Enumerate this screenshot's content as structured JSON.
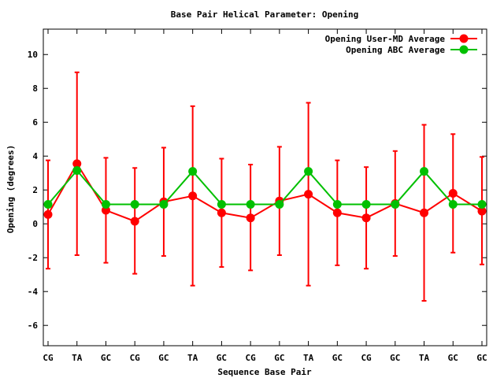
{
  "chart_data": {
    "type": "line",
    "title": "Base Pair Helical Parameter: Opening",
    "xlabel": "Sequence Base Pair",
    "ylabel": "Opening (degrees)",
    "categories": [
      "CG",
      "TA",
      "GC",
      "CG",
      "GC",
      "TA",
      "GC",
      "CG",
      "GC",
      "TA",
      "GC",
      "CG",
      "GC",
      "TA",
      "GC",
      "GC"
    ],
    "ylim": [
      -7.2,
      11.5
    ],
    "yticks": [
      -6,
      -4,
      -2,
      0,
      2,
      4,
      6,
      8,
      10
    ],
    "legend_position": "top-right",
    "grid": false,
    "series": [
      {
        "name": "Opening User-MD Average",
        "color": "#ff0000",
        "values": [
          0.55,
          3.55,
          0.8,
          0.15,
          1.3,
          1.65,
          0.65,
          0.35,
          1.35,
          1.75,
          0.65,
          0.35,
          1.2,
          0.65,
          1.8,
          0.75
        ],
        "err_low": [
          -2.65,
          -1.85,
          -2.3,
          -2.95,
          -1.9,
          -3.65,
          -2.55,
          -2.75,
          -1.85,
          -3.65,
          -2.45,
          -2.65,
          -1.9,
          -4.55,
          -1.7,
          -2.4
        ],
        "err_high": [
          3.75,
          8.95,
          3.9,
          3.3,
          4.5,
          6.95,
          3.85,
          3.5,
          4.55,
          7.15,
          3.75,
          3.35,
          4.3,
          5.85,
          5.3,
          3.95
        ]
      },
      {
        "name": "Opening ABC Average",
        "color": "#00c000",
        "values": [
          1.15,
          3.15,
          1.15,
          1.15,
          1.15,
          3.1,
          1.15,
          1.15,
          1.15,
          3.1,
          1.15,
          1.15,
          1.15,
          3.1,
          1.15,
          1.15
        ]
      }
    ]
  }
}
